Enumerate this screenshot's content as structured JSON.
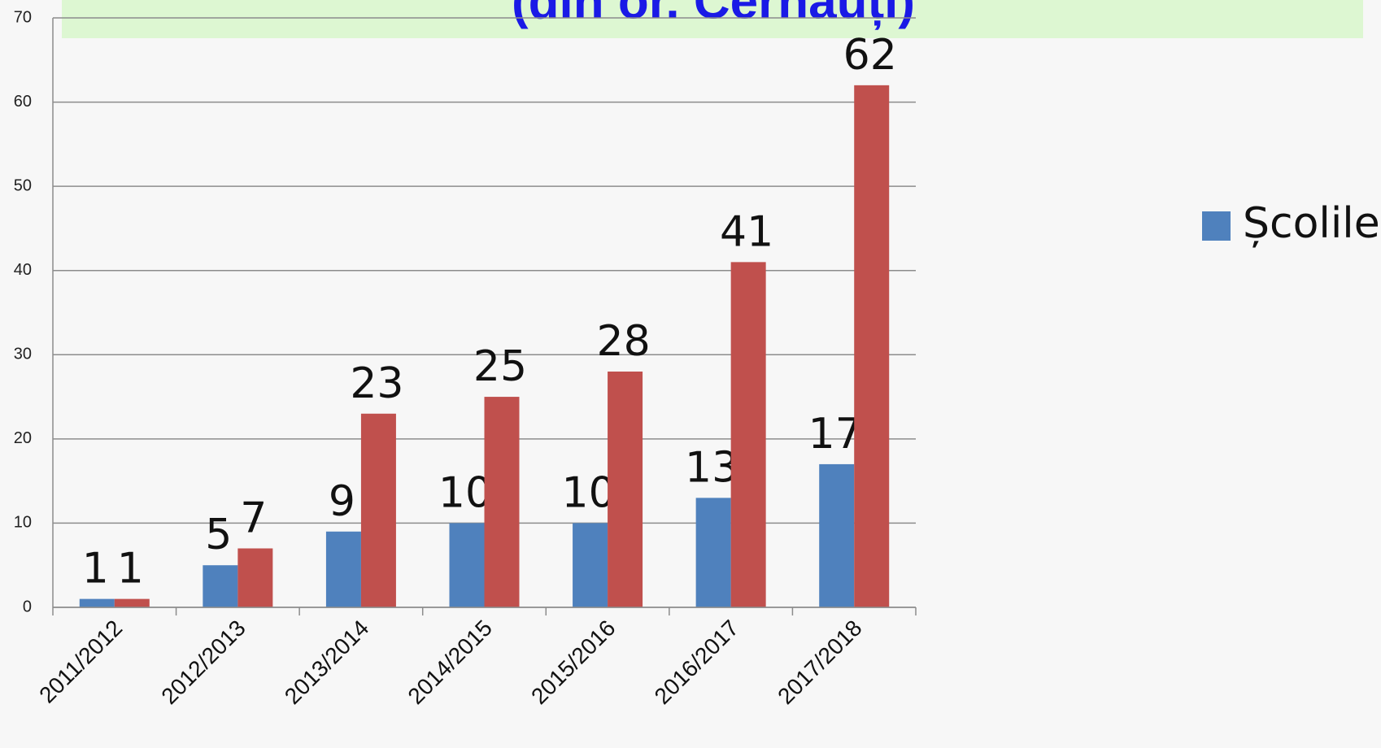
{
  "chart_data": {
    "type": "bar",
    "title": "(din or. Cernăuți)",
    "categories": [
      "2011/2012",
      "2012/2013",
      "2013/2014",
      "2014/2015",
      "2015/2016",
      "2016/2017",
      "2017/2018"
    ],
    "series": [
      {
        "name": "Școlile",
        "color": "#4f81bd",
        "values": [
          1,
          5,
          9,
          10,
          10,
          13,
          17
        ]
      },
      {
        "color": "#c0504d",
        "values": [
          1,
          7,
          23,
          25,
          28,
          41,
          62
        ]
      }
    ],
    "ylim": [
      0,
      70
    ],
    "yticks": [
      0,
      10,
      20,
      30,
      40,
      50,
      60,
      70
    ],
    "grid": true,
    "legend": "right"
  }
}
